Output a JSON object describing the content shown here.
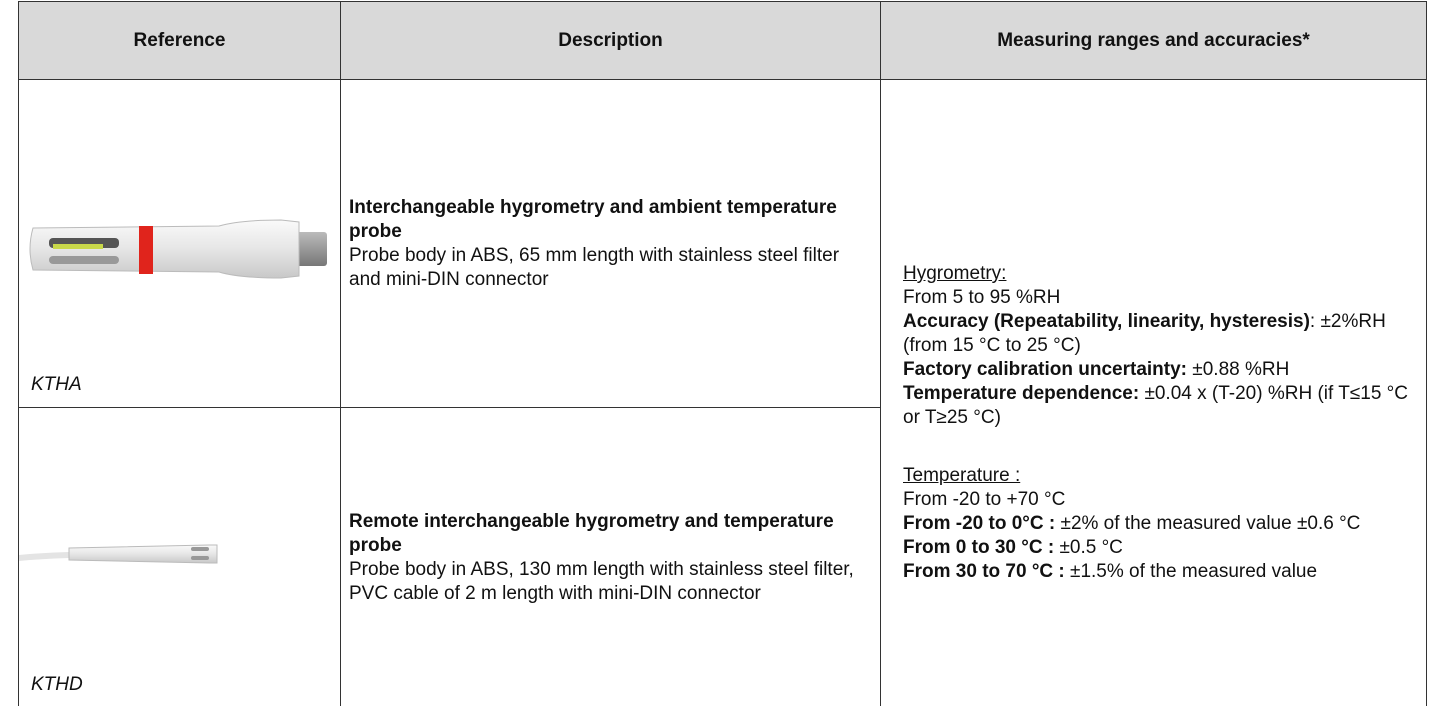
{
  "table": {
    "headers": [
      "Reference",
      "Description",
      "Measuring ranges and accuracies*"
    ],
    "rows": [
      {
        "reference": "KTHA",
        "title": "Interchangeable hygrometry and ambient temperature probe",
        "description": "Probe body in ABS, 65 mm length with stainless steel filter and mini-DIN connector"
      },
      {
        "reference": "KTHD",
        "title": "Remote interchangeable hygrometry and temperature probe",
        "description": "Probe body in ABS, 130 mm length with stainless steel filter, PVC cable of 2 m length with mini-DIN connector"
      }
    ],
    "measurements": [
      {
        "heading": "Hygrometry:",
        "lines": [
          {
            "text": "From 5 to 95 %RH"
          },
          {
            "bold": "Accuracy (Repeatability, linearity, hysteresis)",
            "text": ": ±2%RH (from 15 °C to 25 °C)"
          },
          {
            "bold": "Factory calibration uncertainty:",
            "text": "±0.88 %RH"
          },
          {
            "bold": "Temperature dependence:",
            "text": "±0.04 x (T-20) %RH (if T≤15 °C or T≥25 °C)"
          }
        ]
      },
      {
        "heading": "Temperature :",
        "lines": [
          {
            "text": "From -20 to +70 °C"
          },
          {
            "bold": "From -20 to 0°C :",
            "text": "±2% of the measured value ±0.6 °C"
          },
          {
            "bold": "From 0 to 30 °C :",
            "text": "±0.5 °C"
          },
          {
            "bold": "From 30 to 70 °C :",
            "text": "±1.5% of the measured value"
          }
        ]
      }
    ]
  }
}
